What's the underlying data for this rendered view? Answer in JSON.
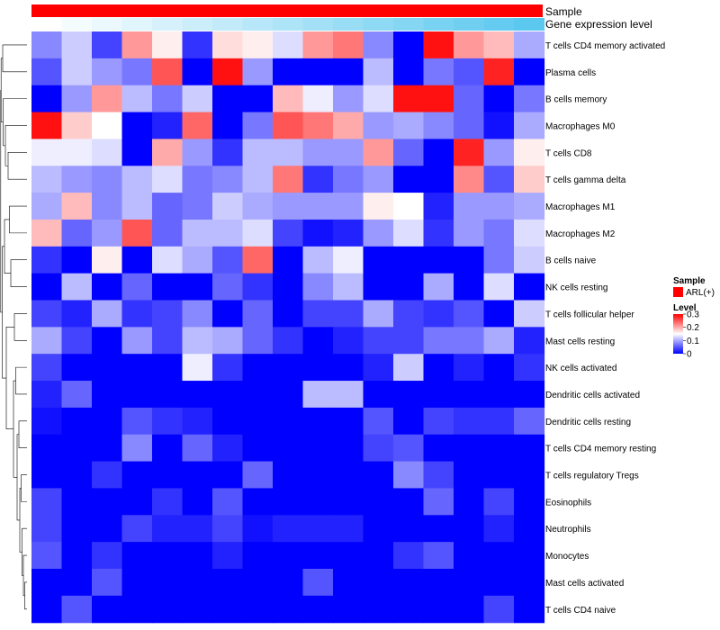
{
  "chart_data": {
    "type": "heatmap",
    "annotations": {
      "sample_label": "Sample",
      "sample_color": "#ff0000",
      "expression_label": "Gene expression level",
      "expression_gradient": [
        "#ffffff",
        "#5bc8ef"
      ]
    },
    "legend": {
      "sample_title": "Sample",
      "sample_entry": "ARL(+)",
      "level_title": "Level",
      "ticks": [
        "0.3",
        "0.2",
        "0.1",
        "0"
      ],
      "tick_values": [
        0.3,
        0.2,
        0.1,
        0
      ],
      "range": [
        0,
        0.3
      ],
      "colors": {
        "low": "#0000ff",
        "mid": "#ffffff",
        "high": "#ff0000"
      }
    },
    "rows": [
      "T cells CD4 memory activated",
      "Plasma cells",
      "B cells memory",
      "Macrophages M0",
      "T cells CD8",
      "T cells gamma delta",
      "Macrophages M1",
      "Macrophages M2",
      "B cells naive",
      "NK cells resting",
      "T cells follicular helper",
      "Mast cells resting",
      "NK cells activated",
      "Dendritic cells activated",
      "Dendritic cells resting",
      "T cells CD4 memory resting",
      "T cells regulatory  Tregs",
      "Eosinophils",
      "Neutrophils",
      "Monocytes",
      "Mast cells activated",
      "T cells CD4 naive"
    ],
    "values": [
      [
        0.08,
        0.12,
        0.04,
        0.21,
        0.16,
        0.03,
        0.17,
        0.16,
        0.13,
        0.21,
        0.23,
        0.08,
        0.0,
        0.29,
        0.21,
        0.19,
        0.1
      ],
      [
        0.05,
        0.12,
        0.09,
        0.07,
        0.25,
        0.0,
        0.29,
        0.09,
        0.0,
        0.0,
        0.0,
        0.11,
        0.0,
        0.07,
        0.05,
        0.28,
        0.0
      ],
      [
        0.0,
        0.09,
        0.21,
        0.11,
        0.07,
        0.12,
        0.0,
        0.0,
        0.19,
        0.14,
        0.09,
        0.13,
        0.29,
        0.29,
        0.06,
        0.0,
        0.07
      ],
      [
        0.29,
        0.18,
        0.15,
        0.0,
        0.02,
        0.24,
        0.0,
        0.07,
        0.25,
        0.23,
        0.2,
        0.09,
        0.1,
        0.08,
        0.06,
        0.01,
        0.1
      ],
      [
        0.14,
        0.14,
        0.13,
        0.0,
        0.2,
        0.09,
        0.03,
        0.11,
        0.11,
        0.09,
        0.09,
        0.21,
        0.06,
        0.0,
        0.28,
        0.09,
        0.16
      ],
      [
        0.11,
        0.09,
        0.08,
        0.11,
        0.13,
        0.07,
        0.08,
        0.11,
        0.23,
        0.03,
        0.07,
        0.09,
        0.0,
        0.0,
        0.22,
        0.05,
        0.18
      ],
      [
        0.1,
        0.19,
        0.08,
        0.11,
        0.06,
        0.07,
        0.12,
        0.1,
        0.09,
        0.09,
        0.09,
        0.16,
        0.15,
        0.02,
        0.09,
        0.09,
        0.1
      ],
      [
        0.19,
        0.06,
        0.09,
        0.25,
        0.06,
        0.11,
        0.11,
        0.13,
        0.04,
        0.01,
        0.02,
        0.09,
        0.13,
        0.03,
        0.09,
        0.07,
        0.13
      ],
      [
        0.03,
        0.0,
        0.16,
        0.0,
        0.13,
        0.1,
        0.05,
        0.24,
        0.0,
        0.11,
        0.14,
        0.0,
        0.0,
        0.0,
        0.0,
        0.07,
        0.12
      ],
      [
        0.0,
        0.11,
        0.0,
        0.06,
        0.0,
        0.0,
        0.06,
        0.03,
        0.0,
        0.08,
        0.11,
        0.0,
        0.0,
        0.1,
        0.0,
        0.13,
        0.0
      ],
      [
        0.04,
        0.02,
        0.1,
        0.03,
        0.04,
        0.08,
        0.0,
        0.06,
        0.0,
        0.04,
        0.04,
        0.1,
        0.04,
        0.03,
        0.05,
        0.0,
        0.12
      ],
      [
        0.1,
        0.04,
        0.0,
        0.09,
        0.04,
        0.11,
        0.1,
        0.06,
        0.03,
        0.0,
        0.02,
        0.04,
        0.04,
        0.07,
        0.07,
        0.1,
        0.02
      ],
      [
        0.04,
        0.0,
        0.0,
        0.0,
        0.0,
        0.14,
        0.03,
        0.0,
        0.0,
        0.0,
        0.0,
        0.02,
        0.12,
        0.0,
        0.02,
        0.0,
        0.03
      ],
      [
        0.02,
        0.06,
        0.0,
        0.0,
        0.0,
        0.0,
        0.0,
        0.0,
        0.0,
        0.11,
        0.11,
        0.0,
        0.0,
        0.0,
        0.0,
        0.0,
        0.0
      ],
      [
        0.01,
        0.0,
        0.0,
        0.05,
        0.03,
        0.02,
        0.0,
        0.0,
        0.0,
        0.0,
        0.0,
        0.05,
        0.0,
        0.04,
        0.03,
        0.03,
        0.06
      ],
      [
        0.0,
        0.0,
        0.0,
        0.08,
        0.0,
        0.06,
        0.02,
        0.0,
        0.0,
        0.0,
        0.0,
        0.04,
        0.05,
        0.0,
        0.0,
        0.0,
        0.0
      ],
      [
        0.0,
        0.0,
        0.03,
        0.0,
        0.0,
        0.0,
        0.0,
        0.06,
        0.0,
        0.0,
        0.0,
        0.0,
        0.08,
        0.04,
        0.0,
        0.0,
        0.0
      ],
      [
        0.04,
        0.0,
        0.0,
        0.0,
        0.03,
        0.0,
        0.05,
        0.0,
        0.0,
        0.0,
        0.0,
        0.0,
        0.0,
        0.06,
        0.0,
        0.04,
        0.0
      ],
      [
        0.04,
        0.0,
        0.0,
        0.04,
        0.02,
        0.02,
        0.04,
        0.01,
        0.02,
        0.02,
        0.02,
        0.0,
        0.0,
        0.0,
        0.0,
        0.02,
        0.0
      ],
      [
        0.05,
        0.0,
        0.03,
        0.0,
        0.0,
        0.0,
        0.02,
        0.0,
        0.0,
        0.0,
        0.0,
        0.0,
        0.03,
        0.05,
        0.0,
        0.0,
        0.0
      ],
      [
        0.0,
        0.0,
        0.05,
        0.0,
        0.0,
        0.0,
        0.0,
        0.0,
        0.0,
        0.05,
        0.0,
        0.0,
        0.0,
        0.0,
        0.0,
        0.0,
        0.0
      ],
      [
        0.0,
        0.05,
        0.0,
        0.0,
        0.0,
        0.0,
        0.0,
        0.0,
        0.0,
        0.0,
        0.0,
        0.0,
        0.0,
        0.0,
        0.0,
        0.04,
        0.0
      ]
    ]
  }
}
